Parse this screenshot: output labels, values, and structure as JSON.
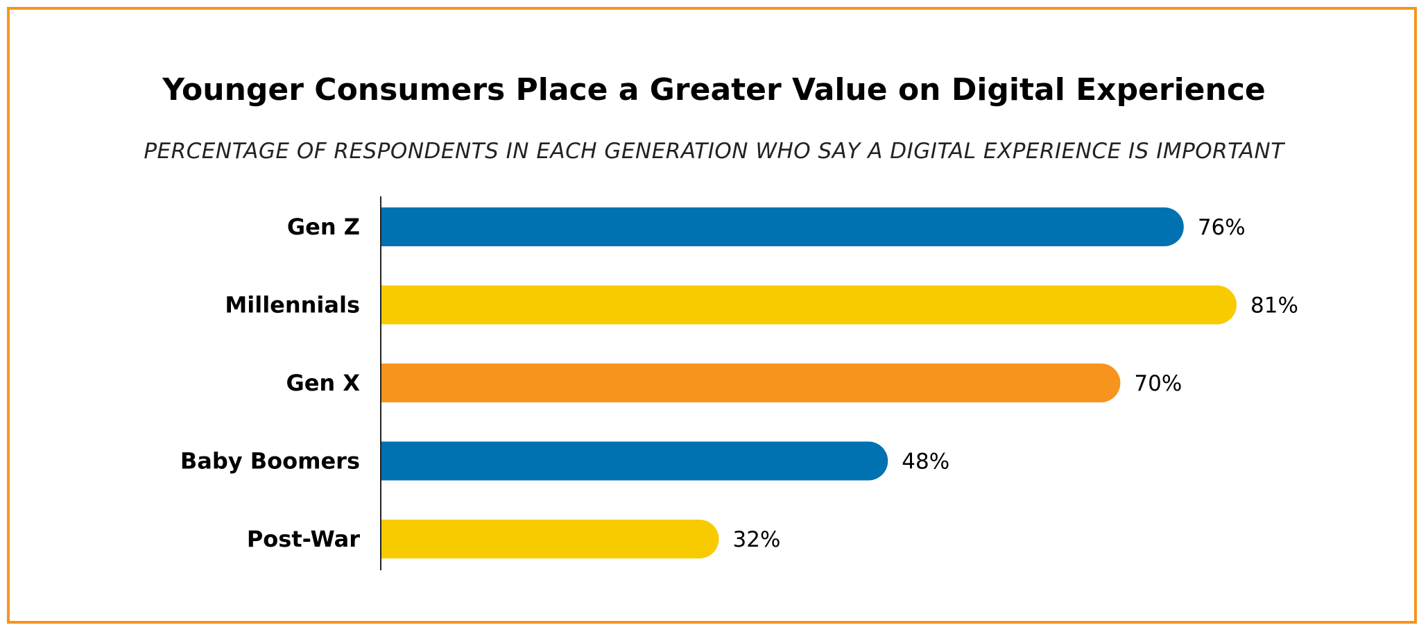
{
  "chart_data": {
    "type": "bar",
    "orientation": "horizontal",
    "title": "Younger Consumers Place a Greater Value on Digital Experience",
    "subtitle": "PERCENTAGE OF RESPONDENTS IN EACH GENERATION WHO SAY A DIGITAL EXPERIENCE IS IMPORTANT",
    "categories": [
      "Gen Z",
      "Millennials",
      "Gen X",
      "Baby Boomers",
      "Post-War"
    ],
    "values": [
      76,
      81,
      70,
      48,
      32
    ],
    "value_labels": [
      "76%",
      "81%",
      "70%",
      "48%",
      "32%"
    ],
    "bar_colors": [
      "#0072b1",
      "#f8cb00",
      "#f7941d",
      "#0072b1",
      "#f8cb00"
    ],
    "xlim": [
      0,
      100
    ],
    "grid": false,
    "legend": "none"
  },
  "colors": {
    "frame": "#f7941d",
    "axis": "#222222"
  }
}
